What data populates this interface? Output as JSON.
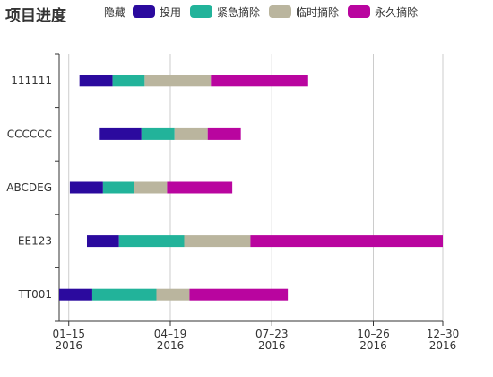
{
  "title": "项目进度",
  "legend": {
    "toggle_label": "隐藏",
    "items": [
      {
        "label": "投用",
        "color": "#2b0a9e"
      },
      {
        "label": "紧急摘除",
        "color": "#22b39a"
      },
      {
        "label": "临时摘除",
        "color": "#bab59e"
      },
      {
        "label": "永久摘除",
        "color": "#b9059f"
      }
    ]
  },
  "chart_data": {
    "type": "bar",
    "orientation": "horizontal-stacked-timeline",
    "title": "项目进度",
    "categories": [
      "TT001",
      "EE123",
      "ABCDEG",
      "CCCCCC",
      "111111"
    ],
    "xlim": [
      "2016-01-06",
      "2016-12-30"
    ],
    "x_ticks": [
      {
        "date": "2016-01-15",
        "line1": "01–15",
        "line2": "2016"
      },
      {
        "date": "2016-04-19",
        "line1": "04–19",
        "line2": "2016"
      },
      {
        "date": "2016-07-23",
        "line1": "07–23",
        "line2": "2016"
      },
      {
        "date": "2016-10-26",
        "line1": "10–26",
        "line2": "2016"
      },
      {
        "date": "2016-12-30",
        "line1": "12–30",
        "line2": "2016"
      }
    ],
    "grid": true,
    "legend_position": "top",
    "series": [
      {
        "name": "投用",
        "color": "#2b0a9e",
        "ranges": [
          [
            "2016-01-06",
            "2016-02-06"
          ],
          [
            "2016-02-01",
            "2016-03-02"
          ],
          [
            "2016-01-16",
            "2016-02-16"
          ],
          [
            "2016-02-13",
            "2016-03-23"
          ],
          [
            "2016-01-25",
            "2016-02-25"
          ]
        ]
      },
      {
        "name": "紧急摘除",
        "color": "#22b39a",
        "ranges": [
          [
            "2016-02-06",
            "2016-04-06"
          ],
          [
            "2016-03-02",
            "2016-05-02"
          ],
          [
            "2016-02-16",
            "2016-03-16"
          ],
          [
            "2016-03-23",
            "2016-04-23"
          ],
          [
            "2016-02-25",
            "2016-03-26"
          ]
        ]
      },
      {
        "name": "临时摘除",
        "color": "#bab59e",
        "ranges": [
          [
            "2016-04-06",
            "2016-05-07"
          ],
          [
            "2016-05-02",
            "2016-07-03"
          ],
          [
            "2016-03-16",
            "2016-04-16"
          ],
          [
            "2016-04-23",
            "2016-05-24"
          ],
          [
            "2016-03-26",
            "2016-05-27"
          ]
        ]
      },
      {
        "name": "永久摘除",
        "color": "#b9059f",
        "ranges": [
          [
            "2016-05-07",
            "2016-08-07"
          ],
          [
            "2016-07-03",
            "2016-12-30"
          ],
          [
            "2016-04-16",
            "2016-06-16"
          ],
          [
            "2016-05-24",
            "2016-06-24"
          ],
          [
            "2016-05-27",
            "2016-08-26"
          ]
        ]
      }
    ]
  }
}
